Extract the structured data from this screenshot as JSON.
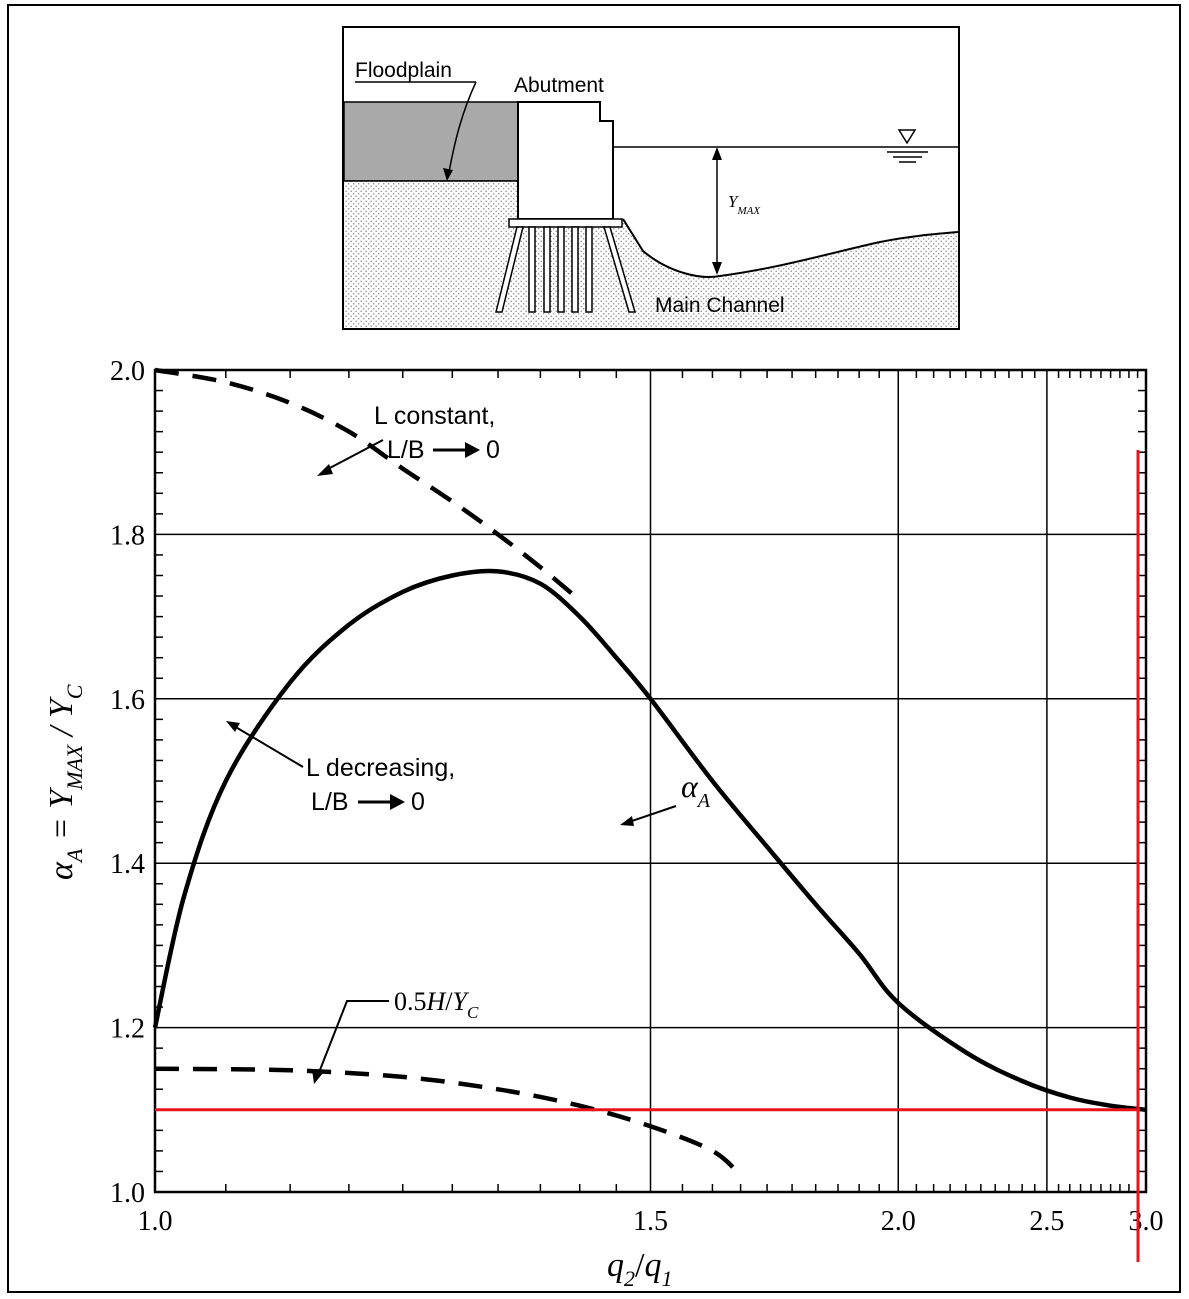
{
  "figure": {
    "inset": {
      "floodplain_label": "Floodplain",
      "abutment_label": "Abutment",
      "ymax_label": "Y",
      "ymax_sub": "MAX",
      "main_channel_label": "Main Channel"
    }
  },
  "chart_data": {
    "type": "line",
    "x": {
      "label_q2": "q",
      "label_q2_sub": "2",
      "label_slash": "/",
      "label_q1": "q",
      "label_q1_sub": "1",
      "ticks": [
        1.0,
        1.5,
        2.0,
        2.5,
        3.0
      ],
      "tick_labels": [
        "1.0",
        "1.5",
        "2.0",
        "2.5",
        "3.0"
      ],
      "range": [
        1.0,
        3.0
      ],
      "scale": "reciprocal"
    },
    "y": {
      "label_alpha": "α",
      "label_alpha_sub": "A",
      "label_mid": " = Y",
      "label_mid_sub": "MAX",
      "label_tail": " / Y",
      "label_tail_sub": "C",
      "ticks": [
        1.0,
        1.2,
        1.4,
        1.6,
        1.8,
        2.0
      ],
      "tick_labels": [
        "1.0",
        "1.2",
        "1.4",
        "1.6",
        "1.8",
        "2.0"
      ],
      "range": [
        1.0,
        2.0
      ]
    },
    "grid": true,
    "series": [
      {
        "style": "solid",
        "x": [
          1.0,
          1.02,
          1.05,
          1.1,
          1.15,
          1.2,
          1.25,
          1.3,
          1.35,
          1.4,
          1.45,
          1.5,
          1.6,
          1.7,
          1.8,
          1.9,
          2.0,
          2.2,
          2.4,
          2.6,
          2.8,
          3.0
        ],
        "y": [
          1.2,
          1.36,
          1.5,
          1.62,
          1.69,
          1.73,
          1.75,
          1.755,
          1.74,
          1.7,
          1.65,
          1.6,
          1.5,
          1.42,
          1.35,
          1.29,
          1.23,
          1.17,
          1.135,
          1.115,
          1.105,
          1.1
        ]
      },
      {
        "style": "dashed",
        "x": [
          1.0,
          1.05,
          1.1,
          1.15,
          1.2,
          1.25,
          1.3,
          1.35,
          1.4
        ],
        "y": [
          2.0,
          1.985,
          1.96,
          1.925,
          1.88,
          1.84,
          1.8,
          1.76,
          1.72
        ]
      },
      {
        "style": "dashed",
        "x": [
          1.0,
          1.1,
          1.2,
          1.3,
          1.4,
          1.5,
          1.6,
          1.65
        ],
        "y": [
          1.15,
          1.148,
          1.14,
          1.125,
          1.105,
          1.08,
          1.05,
          1.02
        ]
      }
    ],
    "annotations": {
      "l_constant_line1": "L constant,",
      "l_constant_line2": "L/B",
      "l_decreasing_line1": "L decreasing,",
      "l_decreasing_line2": "L/B",
      "arrow_target": "0",
      "alpha_label": "α",
      "alpha_label_sub": "A",
      "h_label_prefix": "0.5",
      "h_label_h": "H",
      "h_label_slash": "/",
      "h_label_y": "Y",
      "h_label_sub": "C"
    },
    "reference_lines": [
      {
        "orientation": "horizontal",
        "value": 1.1,
        "color": "#e8141c"
      },
      {
        "orientation": "vertical",
        "value": 3.0,
        "color": "#e8141c"
      }
    ]
  }
}
